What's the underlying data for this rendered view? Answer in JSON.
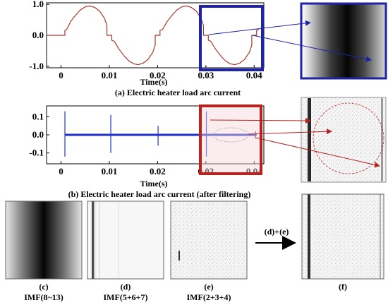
{
  "chart_data": [
    {
      "type": "line",
      "caption_letter": "(a)",
      "caption_text": "Electric heater load arc current",
      "xlabel": "Time(s)",
      "xlim": [
        -0.003,
        0.042
      ],
      "ylim": [
        -1.05,
        1.05
      ],
      "xticks": [
        "0",
        "0.01",
        "0.02",
        "0.03",
        "0.04"
      ],
      "xtick_values": [
        0,
        0.01,
        0.02,
        0.03,
        0.04
      ],
      "yticks": [
        "1.0",
        "0.0",
        "-1.0"
      ],
      "ytick_values": [
        1.0,
        0.0,
        -1.0
      ],
      "series": [
        {
          "x": [
            -0.003,
            0.0008,
            0.0008,
            0.0012,
            0.002,
            0.003,
            0.004,
            0.005,
            0.006,
            0.007,
            0.008,
            0.009,
            0.0095,
            0.0095,
            0.0105,
            0.0105,
            0.011,
            0.012,
            0.013,
            0.014,
            0.015,
            0.016,
            0.017,
            0.018,
            0.019,
            0.0195,
            0.0195,
            0.0205,
            0.0205,
            0.021,
            0.022,
            0.023,
            0.024,
            0.025,
            0.026,
            0.027,
            0.028,
            0.029,
            0.0295,
            0.0295,
            0.0305,
            0.0305,
            0.031,
            0.032,
            0.033,
            0.034,
            0.035,
            0.036,
            0.037,
            0.038,
            0.039,
            0.0395,
            0.0395,
            0.0405,
            0.0405,
            0.041
          ],
          "y": [
            0,
            0,
            0.16,
            0.19,
            0.45,
            0.65,
            0.82,
            0.92,
            0.95,
            0.9,
            0.78,
            0.55,
            0.32,
            0,
            0,
            -0.16,
            -0.19,
            -0.45,
            -0.65,
            -0.82,
            -0.92,
            -0.95,
            -0.9,
            -0.78,
            -0.55,
            -0.32,
            0,
            0,
            0.16,
            0.19,
            0.45,
            0.65,
            0.82,
            0.92,
            0.95,
            0.9,
            0.78,
            0.55,
            0.32,
            0,
            0,
            -0.16,
            -0.19,
            -0.45,
            -0.65,
            -0.82,
            -0.92,
            -0.95,
            -0.9,
            -0.78,
            -0.55,
            -0.32,
            0,
            0,
            0.16,
            0.19
          ]
        }
      ],
      "line_color": "#a83a30"
    },
    {
      "type": "line",
      "caption_letter": "(b)",
      "caption_text": "Electric heater load arc current (after filtering)",
      "xlabel": "Time(s)",
      "xlim": [
        -0.003,
        0.042
      ],
      "ylim": [
        -0.16,
        0.16
      ],
      "xticks": [
        "0",
        "0.01",
        "0.02",
        "0.03",
        "0.04"
      ],
      "xtick_values": [
        0,
        0.01,
        0.02,
        0.03,
        0.04
      ],
      "yticks": [
        "0.1",
        "0.0",
        "-0.1"
      ],
      "ytick_values": [
        0.1,
        0.0,
        -0.1
      ],
      "spikes": [
        {
          "x": 0.0008,
          "up": 0.13,
          "down": -0.12
        },
        {
          "x": 0.0103,
          "up": 0.11,
          "down": -0.1
        },
        {
          "x": 0.0201,
          "up": 0.05,
          "down": -0.06
        },
        {
          "x": 0.0301,
          "up": 0.13,
          "down": -0.12
        },
        {
          "x": 0.0403,
          "up": 0.02,
          "down": -0.02
        }
      ],
      "line_color": "#2233cc"
    }
  ],
  "highlight_box_color_a": "#1e22a8",
  "highlight_box_color_b": "#b8231f",
  "panels": {
    "c": {
      "letter": "(c)",
      "label": "IMF(8~13)"
    },
    "d": {
      "letter": "(d)",
      "label": "IMF(5+6+7)"
    },
    "e": {
      "letter": "(e)",
      "label": "IMF(2+3+4)"
    },
    "f": {
      "letter": "(f)",
      "label": ""
    }
  },
  "arrow_label": "(d)+(e)"
}
